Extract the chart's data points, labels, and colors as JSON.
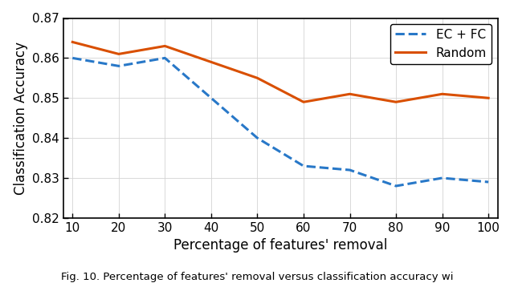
{
  "x": [
    10,
    20,
    30,
    40,
    50,
    60,
    70,
    80,
    90,
    100
  ],
  "ec_fc": [
    0.86,
    0.858,
    0.86,
    0.85,
    0.84,
    0.833,
    0.832,
    0.828,
    0.83,
    0.829
  ],
  "random": [
    0.864,
    0.861,
    0.863,
    0.859,
    0.855,
    0.849,
    0.851,
    0.849,
    0.851,
    0.85
  ],
  "ec_fc_color": "#2878C8",
  "random_color": "#D94F00",
  "xlabel": "Percentage of features' removal",
  "ylabel": "Classification Accuracy",
  "ylim": [
    0.82,
    0.87
  ],
  "xlim": [
    8,
    102
  ],
  "yticks": [
    0.82,
    0.83,
    0.84,
    0.85,
    0.86,
    0.87
  ],
  "xticks": [
    10,
    20,
    30,
    40,
    50,
    60,
    70,
    80,
    90,
    100
  ],
  "legend_ec_fc": "EC + FC",
  "legend_random": "Random",
  "caption": "Fig. 10. Percentage of features' removal versus classification accuracy wi"
}
